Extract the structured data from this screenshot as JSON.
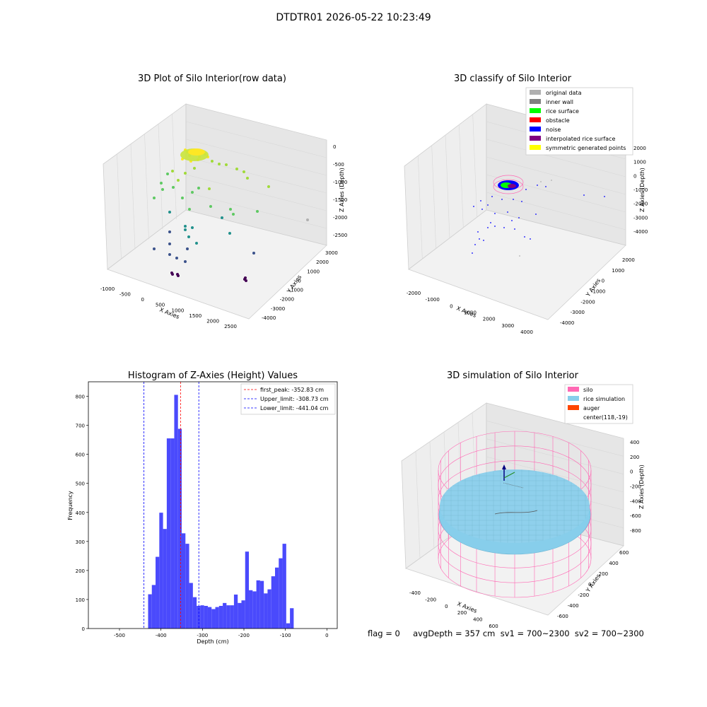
{
  "figure": {
    "title": "DTDTR01 2026-05-22 10:23:49",
    "status_line": "flag = 0     avgDepth = 357 cm  sv1 = 700~2300  sv2 = 700~2300"
  },
  "colors": {
    "hist_bar": "#4a4afc",
    "first_peak": "#ff0000",
    "limits": "#0000ff",
    "original": "#b0b0b0",
    "inner_wall": "#808080",
    "rice_surface": "#00ff00",
    "obstacle": "#ff0000",
    "noise": "#0000ff",
    "interpolated": "#800080",
    "symmetric": "#ffff00",
    "silo": "#ff69b4",
    "rice_sim": "#87ceeb",
    "auger": "#ff4500"
  },
  "chart_data": [
    {
      "type": "scatter",
      "subtype": "3d",
      "title": "3D Plot of Silo Interior(row data)",
      "xlabel": "X Axies",
      "ylabel": "Y Axies",
      "zlabel": "Z Axies (Depth)",
      "x_ticks": [
        "-1000",
        "-500",
        "0",
        "500",
        "1000",
        "1500",
        "2000",
        "2500"
      ],
      "y_ticks": [
        "-4000",
        "-3000",
        "-2000",
        "-1000",
        "0",
        "1000",
        "2000",
        "3000"
      ],
      "z_ticks": [
        "0",
        "-500",
        "-1000",
        "-1500",
        "-2000",
        "-2500"
      ],
      "colormap": "viridis (by depth)"
    },
    {
      "type": "scatter",
      "subtype": "3d",
      "title": "3D classify of Silo Interior",
      "xlabel": "X Axies",
      "ylabel": "Y Axies",
      "zlabel": "Z Axies (Depth)",
      "x_ticks": [
        "-2000",
        "-1000",
        "0",
        "1000",
        "2000",
        "3000",
        "4000"
      ],
      "y_ticks": [
        "-4000",
        "-3000",
        "-2000",
        "-1000",
        "0",
        "1000",
        "2000"
      ],
      "z_ticks": [
        "2000",
        "1000",
        "0",
        "-1000",
        "-2000",
        "-3000",
        "-4000"
      ],
      "legend": [
        "original data",
        "inner wall",
        "rice surface",
        "obstacle",
        "noise",
        "interpolated rice surface",
        "symmetric generated points"
      ],
      "legend_position": "top-right"
    },
    {
      "type": "bar",
      "subtype": "histogram",
      "title": "Histogram of Z-Axies (Height) Values",
      "xlabel": "Depth (cm)",
      "ylabel": "Frequency",
      "xlim": [
        -575,
        25
      ],
      "ylim": [
        0,
        850
      ],
      "x_ticks": [
        "-500",
        "-400",
        "-300",
        "-200",
        "-100",
        "0"
      ],
      "y_ticks": [
        "0",
        "100",
        "200",
        "300",
        "400",
        "500",
        "600",
        "700",
        "800"
      ],
      "bin_width": 9,
      "bins_start": [
        -431,
        -422,
        -413,
        -404,
        -395,
        -386,
        -377,
        -368,
        -359,
        -350,
        -341,
        -332,
        -323,
        -314,
        -305,
        -296,
        -287,
        -278,
        -269,
        -260,
        -251,
        -242,
        -233,
        -224,
        -215,
        -206,
        -197,
        -188,
        -179,
        -170,
        -161,
        -152,
        -143,
        -134,
        -125,
        -116,
        -107,
        -98,
        -89,
        -80,
        -71,
        -62,
        -53,
        -44,
        -35,
        -26,
        -17,
        -8
      ],
      "values": [
        118,
        150,
        247,
        399,
        343,
        655,
        655,
        805,
        688,
        328,
        292,
        157,
        108,
        78,
        80,
        78,
        74,
        67,
        74,
        78,
        88,
        80,
        80,
        117,
        88,
        97,
        265,
        132,
        128,
        166,
        164,
        121,
        135,
        180,
        210,
        242,
        292,
        18,
        70,
        0,
        0,
        0,
        0,
        0,
        0,
        0,
        0,
        0
      ],
      "lines": [
        {
          "name": "first_peak: -352.83 cm",
          "x": -352.83,
          "style": "dashed",
          "color": "red"
        },
        {
          "name": "Upper_limit: -308.73 cm",
          "x": -308.73,
          "style": "dashed",
          "color": "blue"
        },
        {
          "name": "Lower_limit: -441.04 cm",
          "x": -441.04,
          "style": "dashed",
          "color": "blue"
        }
      ],
      "legend_position": "top-right"
    },
    {
      "type": "scatter",
      "subtype": "3d-surface",
      "title": "3D simulation of Silo Interior",
      "xlabel": "X Axies",
      "ylabel": "Y Axies",
      "zlabel": "Z Axies (Depth)",
      "x_ticks": [
        "-400",
        "-200",
        "0",
        "200",
        "400",
        "600"
      ],
      "y_ticks": [
        "-600",
        "-400",
        "-200",
        "0",
        "200",
        "400",
        "600"
      ],
      "z_ticks": [
        "400",
        "200",
        "0",
        "-200",
        "-400",
        "-600",
        "-800"
      ],
      "legend": [
        "silo",
        "rice simulation",
        "auger",
        "center(118,-19)"
      ],
      "legend_position": "top-right"
    }
  ]
}
